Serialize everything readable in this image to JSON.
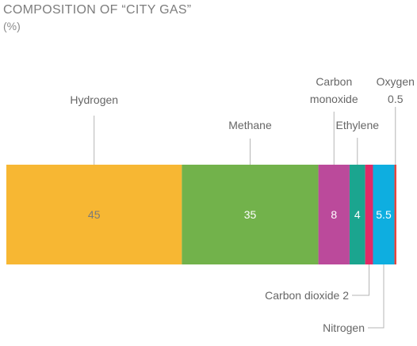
{
  "title": "COMPOSITION OF “CITY GAS”",
  "subtitle": "(%)",
  "chart_data": {
    "type": "bar",
    "orientation": "horizontal-stacked",
    "title": "COMPOSITION OF “CITY GAS”",
    "unit": "(%)",
    "segments": [
      {
        "name": "Hydrogen",
        "value": 45,
        "value_label": "45",
        "color": "#f7b733",
        "label_lines": [
          "Hydrogen"
        ],
        "label_pos": "above"
      },
      {
        "name": "Methane",
        "value": 35,
        "value_label": "35",
        "color": "#72b24b",
        "label_lines": [
          "Methane"
        ],
        "label_pos": "above"
      },
      {
        "name": "Carbon monoxide",
        "value": 8,
        "value_label": "8",
        "color": "#bb4a9b",
        "label_lines": [
          "Carbon",
          "monoxide"
        ],
        "label_pos": "above"
      },
      {
        "name": "Ethylene",
        "value": 4,
        "value_label": "4",
        "color": "#1ba58f",
        "label_lines": [
          "Ethylene"
        ],
        "label_pos": "above"
      },
      {
        "name": "Carbon dioxide",
        "value": 2,
        "value_label": "",
        "color": "#e02a67",
        "label_lines": [
          "Carbon dioxide  2"
        ],
        "label_pos": "below"
      },
      {
        "name": "Nitrogen",
        "value": 5.5,
        "value_label": "5.5",
        "color": "#0eaee0",
        "label_lines": [
          "Nitrogen"
        ],
        "label_pos": "below"
      },
      {
        "name": "Oxygen",
        "value": 0.5,
        "value_label": "",
        "color": "#e8453c",
        "label_lines": [
          "Oxygen",
          "0.5"
        ],
        "label_pos": "above"
      }
    ]
  }
}
